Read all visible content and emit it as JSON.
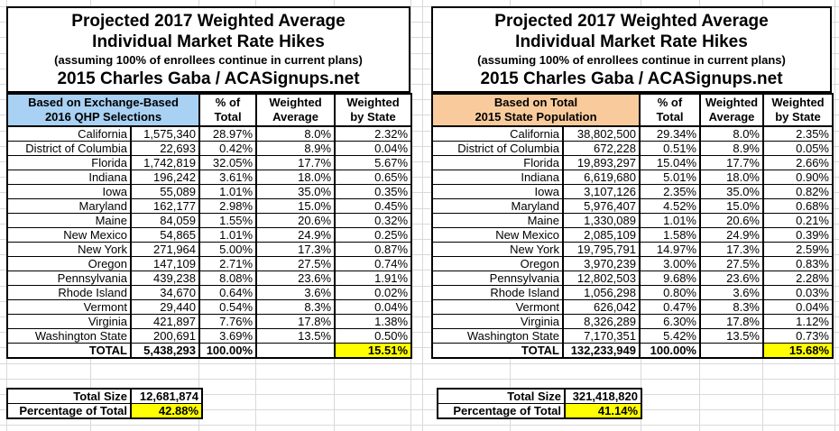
{
  "title": {
    "line1": "Projected 2017 Weighted Average",
    "line2": "Individual Market Rate Hikes",
    "line3": "(assuming 100% of enrollees continue in current plans)",
    "line4": "2015 Charles Gaba / ACASignups.net"
  },
  "column_headers": {
    "pct_line1": "% of",
    "pct_line2": "Total",
    "wavg_line1": "Weighted",
    "wavg_line2": "Average",
    "wstate_line1": "Weighted",
    "wstate_line2": "by State"
  },
  "colors": {
    "exchange_header": "#A8D1F3",
    "population_header": "#F9CB9C",
    "highlight": "#FFFF00"
  },
  "tables": [
    {
      "id": "exchange",
      "basis_line1": "Based on Exchange-Based",
      "basis_line2": "2016 QHP Selections",
      "header_color": "#A8D1F3",
      "rows": [
        {
          "state": "California",
          "value": "1,575,340",
          "pct": "28.97%",
          "wavg": "8.0%",
          "wstate": "2.32%"
        },
        {
          "state": "District of Columbia",
          "value": "22,693",
          "pct": "0.42%",
          "wavg": "8.9%",
          "wstate": "0.04%"
        },
        {
          "state": "Florida",
          "value": "1,742,819",
          "pct": "32.05%",
          "wavg": "17.7%",
          "wstate": "5.67%"
        },
        {
          "state": "Indiana",
          "value": "196,242",
          "pct": "3.61%",
          "wavg": "18.0%",
          "wstate": "0.65%"
        },
        {
          "state": "Iowa",
          "value": "55,089",
          "pct": "1.01%",
          "wavg": "35.0%",
          "wstate": "0.35%"
        },
        {
          "state": "Maryland",
          "value": "162,177",
          "pct": "2.98%",
          "wavg": "15.0%",
          "wstate": "0.45%"
        },
        {
          "state": "Maine",
          "value": "84,059",
          "pct": "1.55%",
          "wavg": "20.6%",
          "wstate": "0.32%"
        },
        {
          "state": "New Mexico",
          "value": "54,865",
          "pct": "1.01%",
          "wavg": "24.9%",
          "wstate": "0.25%"
        },
        {
          "state": "New York",
          "value": "271,964",
          "pct": "5.00%",
          "wavg": "17.3%",
          "wstate": "0.87%"
        },
        {
          "state": "Oregon",
          "value": "147,109",
          "pct": "2.71%",
          "wavg": "27.5%",
          "wstate": "0.74%"
        },
        {
          "state": "Pennsylvania",
          "value": "439,238",
          "pct": "8.08%",
          "wavg": "23.6%",
          "wstate": "1.91%"
        },
        {
          "state": "Rhode Island",
          "value": "34,670",
          "pct": "0.64%",
          "wavg": "3.6%",
          "wstate": "0.02%"
        },
        {
          "state": "Vermont",
          "value": "29,440",
          "pct": "0.54%",
          "wavg": "8.3%",
          "wstate": "0.04%"
        },
        {
          "state": "Virginia",
          "value": "421,897",
          "pct": "7.76%",
          "wavg": "17.8%",
          "wstate": "1.38%"
        },
        {
          "state": "Washington State",
          "value": "200,691",
          "pct": "3.69%",
          "wavg": "13.5%",
          "wstate": "0.50%"
        }
      ],
      "total": {
        "label": "TOTAL",
        "value": "5,438,293",
        "pct": "100.00%",
        "wavg": "",
        "wstate": "15.51%"
      },
      "summary": {
        "size_label": "Total Size",
        "size_value": "12,681,874",
        "pct_label": "Percentage of Total",
        "pct_value": "42.88%"
      }
    },
    {
      "id": "population",
      "basis_line1": "Based on Total",
      "basis_line2": "2015 State Population",
      "header_color": "#F9CB9C",
      "rows": [
        {
          "state": "California",
          "value": "38,802,500",
          "pct": "29.34%",
          "wavg": "8.0%",
          "wstate": "2.35%"
        },
        {
          "state": "District of Columbia",
          "value": "672,228",
          "pct": "0.51%",
          "wavg": "8.9%",
          "wstate": "0.05%"
        },
        {
          "state": "Florida",
          "value": "19,893,297",
          "pct": "15.04%",
          "wavg": "17.7%",
          "wstate": "2.66%"
        },
        {
          "state": "Indiana",
          "value": "6,619,680",
          "pct": "5.01%",
          "wavg": "18.0%",
          "wstate": "0.90%"
        },
        {
          "state": "Iowa",
          "value": "3,107,126",
          "pct": "2.35%",
          "wavg": "35.0%",
          "wstate": "0.82%"
        },
        {
          "state": "Maryland",
          "value": "5,976,407",
          "pct": "4.52%",
          "wavg": "15.0%",
          "wstate": "0.68%"
        },
        {
          "state": "Maine",
          "value": "1,330,089",
          "pct": "1.01%",
          "wavg": "20.6%",
          "wstate": "0.21%"
        },
        {
          "state": "New Mexico",
          "value": "2,085,109",
          "pct": "1.58%",
          "wavg": "24.9%",
          "wstate": "0.39%"
        },
        {
          "state": "New York",
          "value": "19,795,791",
          "pct": "14.97%",
          "wavg": "17.3%",
          "wstate": "2.59%"
        },
        {
          "state": "Oregon",
          "value": "3,970,239",
          "pct": "3.00%",
          "wavg": "27.5%",
          "wstate": "0.83%"
        },
        {
          "state": "Pennsylvania",
          "value": "12,802,503",
          "pct": "9.68%",
          "wavg": "23.6%",
          "wstate": "2.28%"
        },
        {
          "state": "Rhode Island",
          "value": "1,056,298",
          "pct": "0.80%",
          "wavg": "3.6%",
          "wstate": "0.03%"
        },
        {
          "state": "Vermont",
          "value": "626,042",
          "pct": "0.47%",
          "wavg": "8.3%",
          "wstate": "0.04%"
        },
        {
          "state": "Virginia",
          "value": "8,326,289",
          "pct": "6.30%",
          "wavg": "17.8%",
          "wstate": "1.12%"
        },
        {
          "state": "Washington State",
          "value": "7,170,351",
          "pct": "5.42%",
          "wavg": "13.5%",
          "wstate": "0.73%"
        }
      ],
      "total": {
        "label": "TOTAL",
        "value": "132,233,949",
        "pct": "100.00%",
        "wavg": "",
        "wstate": "15.68%"
      },
      "summary": {
        "size_label": "Total Size",
        "size_value": "321,418,820",
        "pct_label": "Percentage of Total",
        "pct_value": "41.14%"
      }
    }
  ]
}
